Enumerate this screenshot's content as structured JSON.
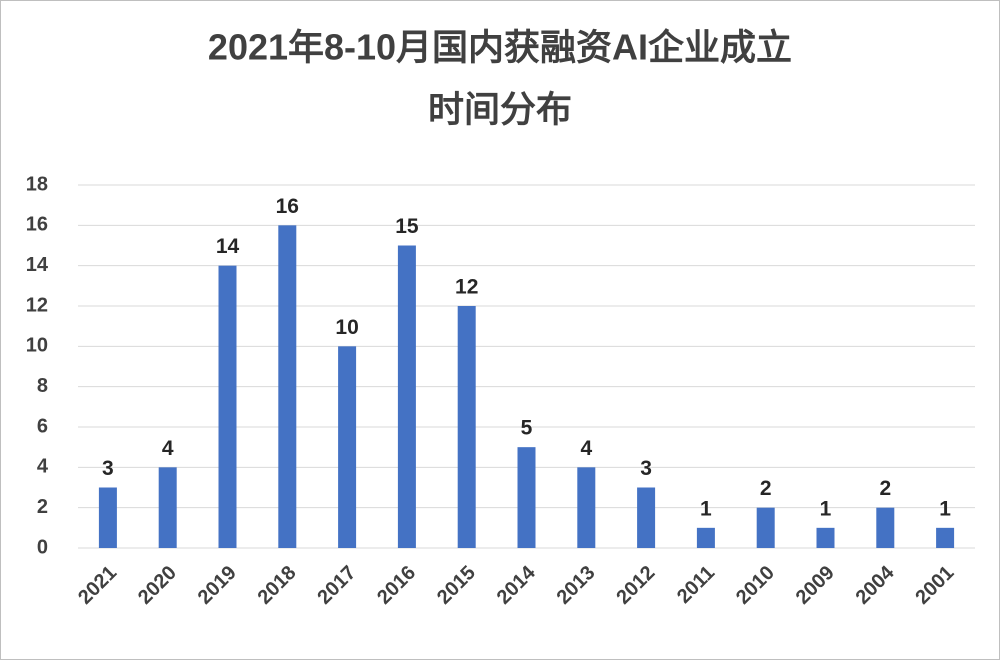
{
  "chart_data": {
    "type": "bar",
    "title": [
      "2021年8-10月国内获融资AI企业成立",
      "时间分布"
    ],
    "categories": [
      "2021",
      "2020",
      "2019",
      "2018",
      "2017",
      "2016",
      "2015",
      "2014",
      "2013",
      "2012",
      "2011",
      "2010",
      "2009",
      "2004",
      "2001"
    ],
    "values": [
      3,
      4,
      14,
      16,
      10,
      15,
      12,
      5,
      4,
      3,
      1,
      2,
      1,
      2,
      1
    ],
    "color": "#4472c4",
    "ylim": [
      0,
      18
    ],
    "yticks": [
      0,
      2,
      4,
      6,
      8,
      10,
      12,
      14,
      16,
      18
    ],
    "grid": true
  }
}
